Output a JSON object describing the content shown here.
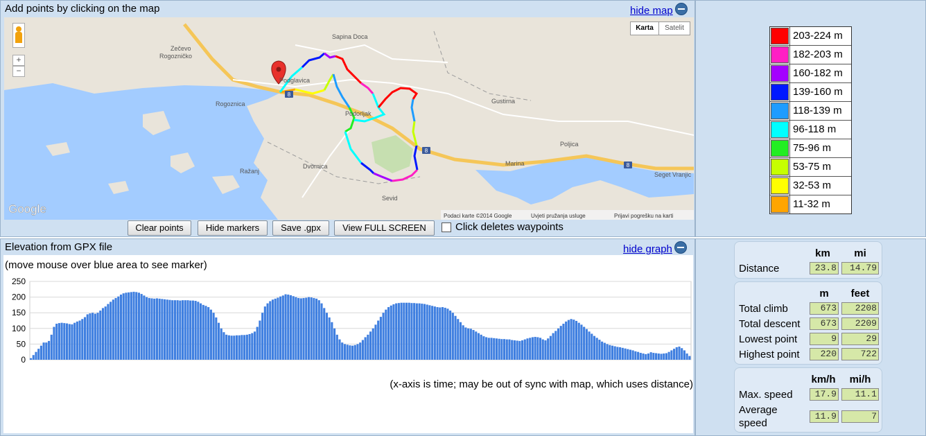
{
  "map_panel": {
    "title": "Add points by clicking on the map",
    "hide_label": "hide map",
    "map_type_buttons": [
      "Karta",
      "Satelit"
    ],
    "places": [
      "Sapina Doca",
      "Zečevo",
      "Rogozničko",
      "Rogoznica",
      "Podglavica",
      "Podorljak",
      "Gustirna",
      "Poljica",
      "Marina",
      "Seget Vranjic",
      "Ražanj",
      "Dvornica",
      "Sevid"
    ],
    "road_number": "8",
    "attribution": [
      "Podaci karte ©2014 Google",
      "Uvjeti pružanja usluge",
      "Prijavi pogrešku na karti"
    ],
    "google_logo": "Google",
    "zoom_in": "+",
    "zoom_out": "−"
  },
  "buttons": {
    "clear": "Clear points",
    "hide_markers": "Hide markers",
    "save": "Save .gpx",
    "fullscreen": "View FULL SCREEN",
    "checkbox_label": "Click deletes waypoints"
  },
  "legend": [
    {
      "label": "203-224 m",
      "color": "#ff0000"
    },
    {
      "label": "182-203 m",
      "color": "#ff1fc4"
    },
    {
      "label": "160-182 m",
      "color": "#a400ff"
    },
    {
      "label": "139-160 m",
      "color": "#0018ff"
    },
    {
      "label": "118-139 m",
      "color": "#1e9cff"
    },
    {
      "label": "96-118 m",
      "color": "#00ffff"
    },
    {
      "label": "75-96 m",
      "color": "#22ee22"
    },
    {
      "label": "53-75 m",
      "color": "#c6ff00"
    },
    {
      "label": "32-53 m",
      "color": "#ffff00"
    },
    {
      "label": "11-32 m",
      "color": "#ffa500"
    }
  ],
  "elevation_panel": {
    "title": "Elevation from GPX file",
    "hide_label": "hide graph",
    "hint": "(move mouse over blue area to see marker)",
    "footnote": "(x-axis is time; may be out of sync with map, which uses distance)"
  },
  "chart_data": {
    "type": "bar",
    "ylim": [
      0,
      250
    ],
    "yticks": [
      "0",
      "50",
      "100",
      "150",
      "200",
      "250"
    ],
    "grid": true,
    "color": "#3f7fe0",
    "values": [
      5,
      15,
      25,
      35,
      45,
      55,
      55,
      60,
      80,
      105,
      115,
      117,
      118,
      117,
      116,
      114,
      113,
      118,
      122,
      125,
      130,
      136,
      145,
      148,
      150,
      147,
      150,
      157,
      165,
      170,
      178,
      185,
      192,
      197,
      202,
      208,
      212,
      214,
      215,
      216,
      217,
      216,
      214,
      210,
      205,
      200,
      197,
      196,
      195,
      196,
      195,
      194,
      193,
      192,
      191,
      190,
      190,
      190,
      189,
      190,
      190,
      190,
      189,
      189,
      188,
      185,
      180,
      175,
      172,
      168,
      160,
      150,
      135,
      118,
      100,
      88,
      80,
      78,
      77,
      77,
      78,
      78,
      79,
      79,
      80,
      82,
      85,
      90,
      105,
      125,
      150,
      170,
      180,
      187,
      192,
      195,
      198,
      202,
      205,
      209,
      208,
      206,
      203,
      200,
      197,
      196,
      197,
      198,
      200,
      199,
      197,
      195,
      190,
      180,
      165,
      150,
      135,
      120,
      100,
      80,
      65,
      55,
      50,
      48,
      46,
      45,
      47,
      50,
      55,
      63,
      72,
      80,
      90,
      100,
      112,
      125,
      137,
      150,
      160,
      168,
      173,
      177,
      180,
      181,
      182,
      182,
      182,
      182,
      181,
      181,
      180,
      180,
      179,
      178,
      176,
      174,
      172,
      170,
      168,
      167,
      168,
      166,
      163,
      157,
      150,
      140,
      130,
      120,
      110,
      103,
      100,
      99,
      95,
      90,
      85,
      80,
      75,
      72,
      70,
      70,
      69,
      68,
      67,
      66,
      66,
      65,
      65,
      63,
      62,
      61,
      60,
      62,
      65,
      68,
      70,
      72,
      73,
      72,
      70,
      65,
      62,
      68,
      76,
      85,
      92,
      100,
      108,
      115,
      122,
      127,
      130,
      128,
      124,
      118,
      112,
      105,
      98,
      90,
      83,
      76,
      70,
      64,
      58,
      54,
      50,
      47,
      45,
      43,
      41,
      40,
      38,
      36,
      34,
      32,
      30,
      27,
      25,
      22,
      20,
      18,
      20,
      24,
      22,
      21,
      20,
      19,
      20,
      21,
      25,
      30,
      35,
      40,
      42,
      37,
      30,
      20,
      12
    ]
  },
  "stats": {
    "distance": {
      "headers": [
        "km",
        "mi"
      ],
      "label": "Distance",
      "values": [
        "23.8",
        "14.79"
      ]
    },
    "elevation": {
      "headers": [
        "m",
        "feet"
      ],
      "rows": [
        {
          "label": "Total climb",
          "values": [
            "673",
            "2208"
          ]
        },
        {
          "label": "Total descent",
          "values": [
            "673",
            "2209"
          ]
        },
        {
          "label": "Lowest point",
          "values": [
            "9",
            "29"
          ]
        },
        {
          "label": "Highest point",
          "values": [
            "220",
            "722"
          ]
        }
      ]
    },
    "speed": {
      "headers": [
        "km/h",
        "mi/h"
      ],
      "rows": [
        {
          "label": "Max. speed",
          "values": [
            "17.9",
            "11.1"
          ]
        },
        {
          "label": "Average speed",
          "values": [
            "11.9",
            "7"
          ]
        }
      ]
    }
  }
}
